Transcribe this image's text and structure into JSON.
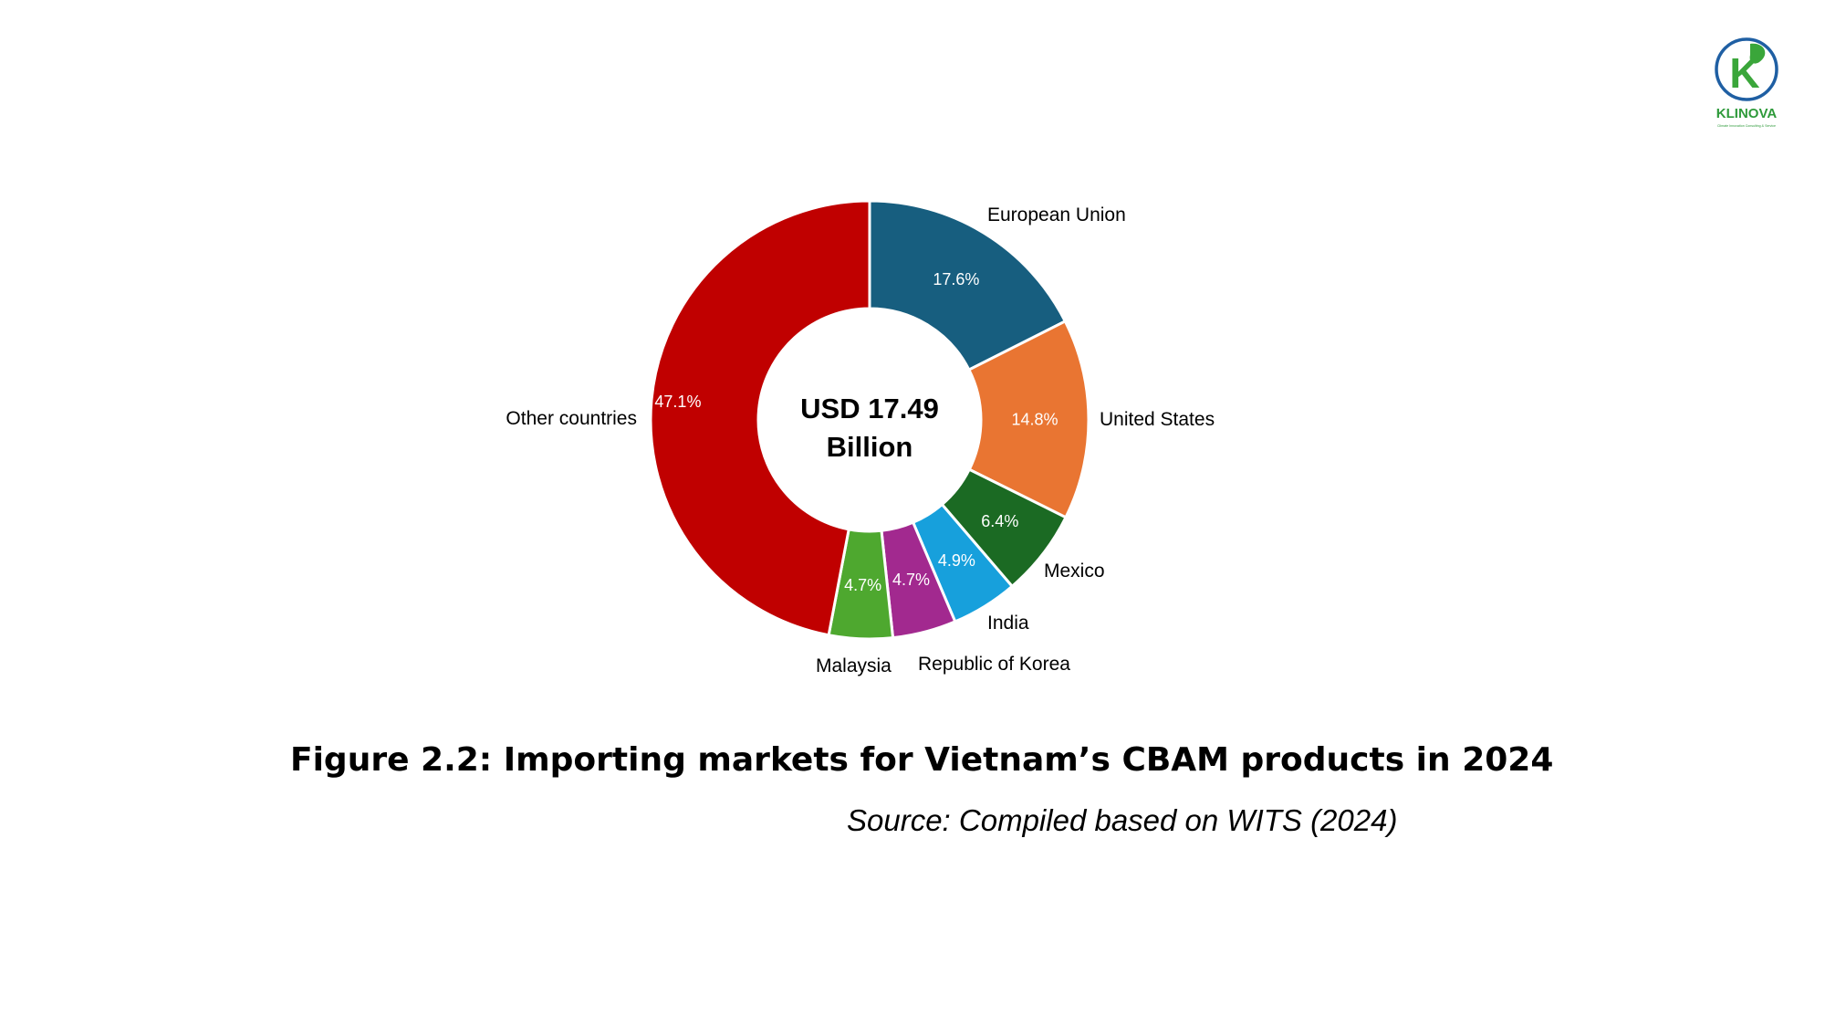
{
  "logo": {
    "letter": "K",
    "name": "KLINOVA",
    "tagline": "Climate Innovation Consulting & Service",
    "colors": {
      "ring": "#1f5fa3",
      "leaf": "#3aa63a",
      "text": "#2e9a3a"
    }
  },
  "chart_data": {
    "type": "pie",
    "style": "donut",
    "center_label": [
      "USD 17.49",
      "Billion"
    ],
    "slices": [
      {
        "label": "European Union",
        "value": 17.6,
        "value_label": "17.6%",
        "color": "#175e7f"
      },
      {
        "label": "United States",
        "value": 14.8,
        "value_label": "14.8%",
        "color": "#e97532"
      },
      {
        "label": "Mexico",
        "value": 6.4,
        "value_label": "6.4%",
        "color": "#1b6a23"
      },
      {
        "label": "India",
        "value": 4.9,
        "value_label": "4.9%",
        "color": "#17a0dc"
      },
      {
        "label": "Republic of Korea",
        "value": 4.7,
        "value_label": "4.7%",
        "color": "#a2298f"
      },
      {
        "label": "Malaysia",
        "value": 4.7,
        "value_label": "4.7%",
        "color": "#4ea82f"
      },
      {
        "label": "Other countries",
        "value": 47.1,
        "value_label": "47.1%",
        "color": "#c00000"
      }
    ]
  },
  "caption": {
    "title": "Figure 2.2: Importing markets for Vietnam’s CBAM products in 2024",
    "source": "Source: Compiled based on WITS (2024)"
  }
}
